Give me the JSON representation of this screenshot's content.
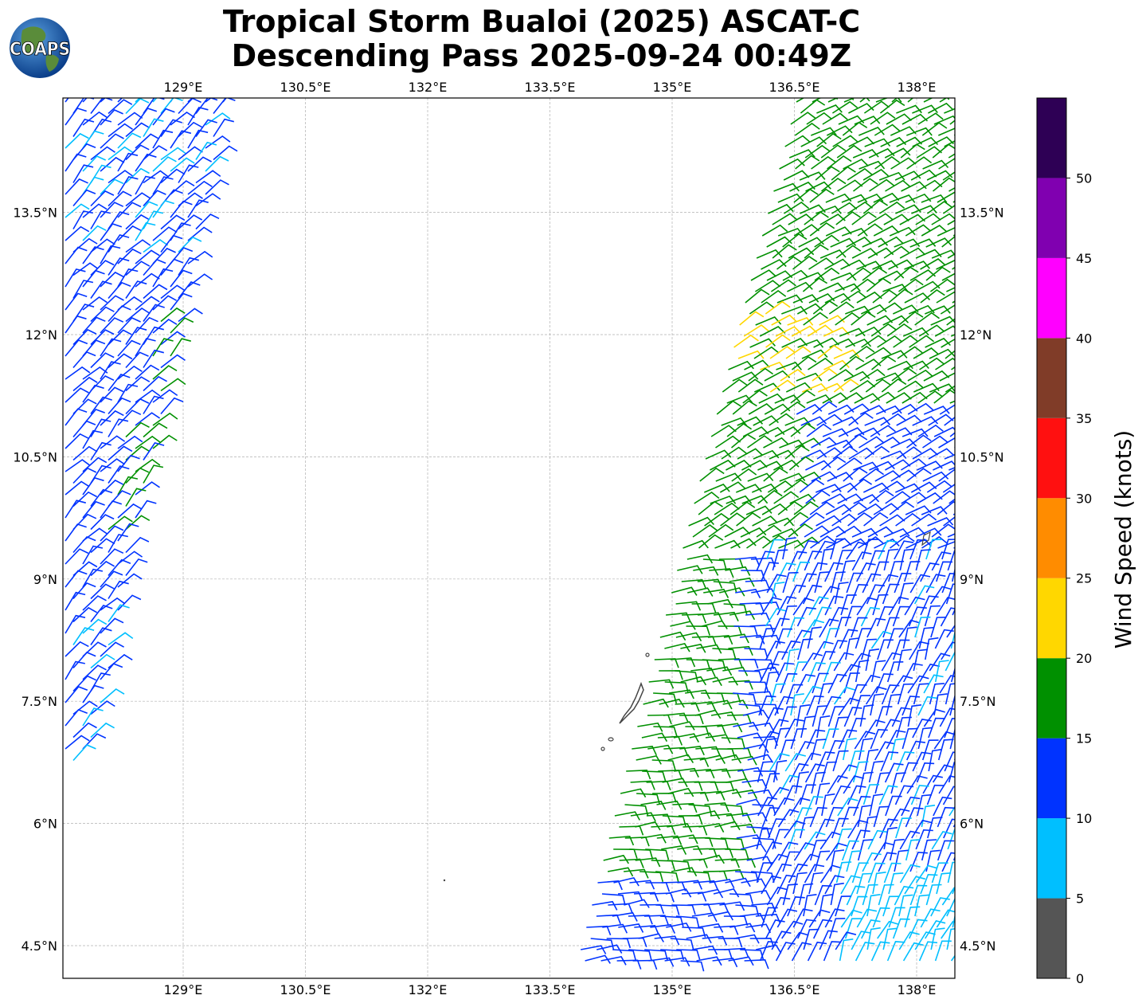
{
  "title": {
    "line1": "Tropical Storm Bualoi (2025) ASCAT-C",
    "line2": "Descending Pass 2025-09-24 00:49Z"
  },
  "logo": {
    "text": "COAPS",
    "icon": "coaps-globe-logo"
  },
  "map": {
    "lon_range": [
      127.5,
      138.5
    ],
    "lat_range": [
      4.1,
      14.9
    ],
    "lon_ticks": [
      "129°E",
      "130.5°E",
      "132°E",
      "133.5°E",
      "135°E",
      "136.5°E",
      "138°E"
    ],
    "lat_ticks": [
      "13.5°N",
      "12°N",
      "10.5°N",
      "9°N",
      "7.5°N",
      "6°N",
      "4.5°N"
    ],
    "grid": true
  },
  "colorbar": {
    "label": "Wind Speed (knots)",
    "ticks": [
      "0",
      "5",
      "10",
      "15",
      "20",
      "25",
      "30",
      "35",
      "40",
      "45",
      "50"
    ],
    "colors": [
      "#555555",
      "#00bfff",
      "#0033ff",
      "#009000",
      "#ffd700",
      "#ff8c00",
      "#ff1010",
      "#803c28",
      "#ff00ff",
      "#8000b0",
      "#2e0055"
    ]
  }
}
